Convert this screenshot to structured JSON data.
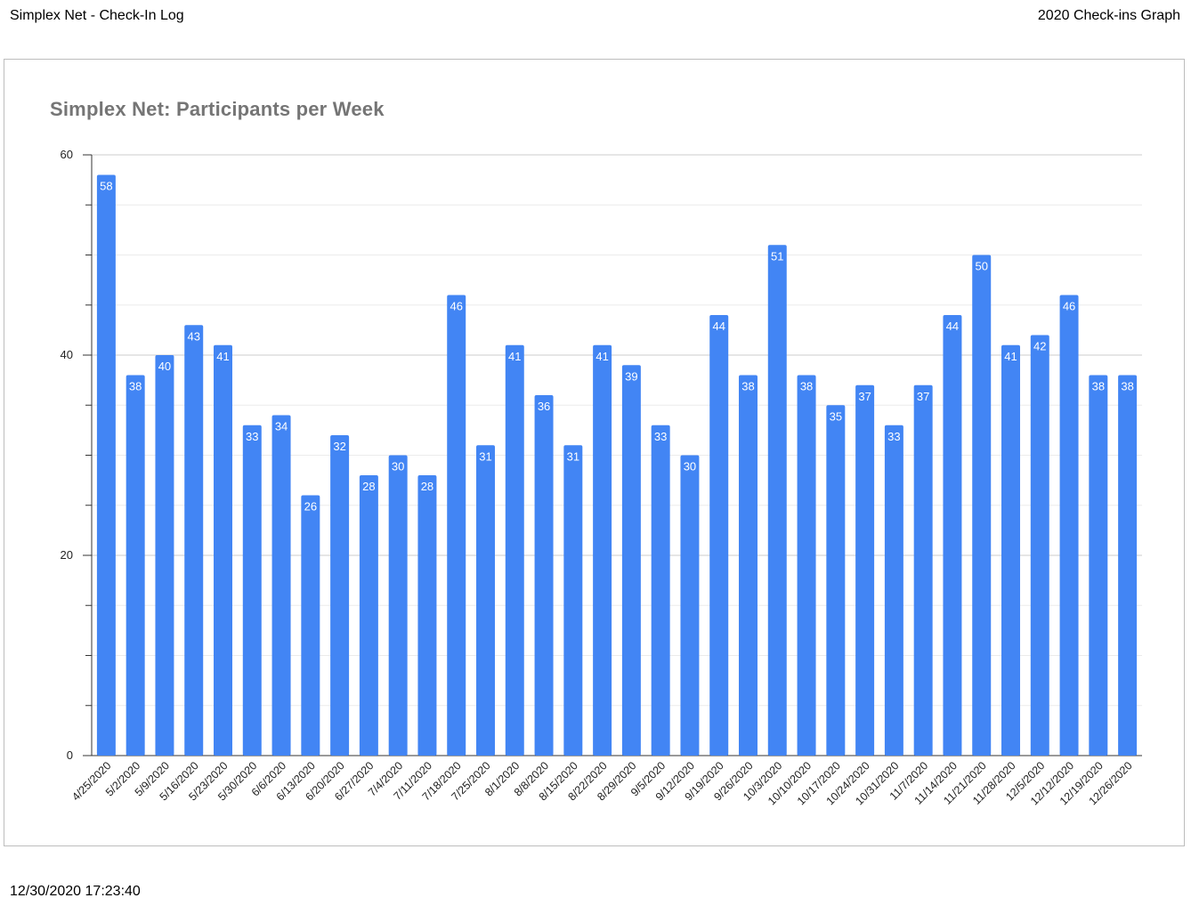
{
  "header": {
    "left": "Simplex Net - Check-In Log",
    "right": "2020 Check-ins Graph"
  },
  "footer": {
    "timestamp": "12/30/2020 17:23:40"
  },
  "colors": {
    "bar": "#4285f4",
    "title": "#757575",
    "grid": "#e0e0e0",
    "axis": "#333333"
  },
  "chart_data": {
    "type": "bar",
    "title": "Simplex Net: Participants per Week",
    "xlabel": "",
    "ylabel": "",
    "ylim": [
      0,
      60
    ],
    "yticks": [
      0,
      20,
      40,
      60
    ],
    "grid": true,
    "legend": "none",
    "data_labels": true,
    "categories": [
      "4/25/2020",
      "5/2/2020",
      "5/9/2020",
      "5/16/2020",
      "5/23/2020",
      "5/30/2020",
      "6/6/2020",
      "6/13/2020",
      "6/20/2020",
      "6/27/2020",
      "7/4/2020",
      "7/11/2020",
      "7/18/2020",
      "7/25/2020",
      "8/1/2020",
      "8/8/2020",
      "8/15/2020",
      "8/22/2020",
      "8/29/2020",
      "9/5/2020",
      "9/12/2020",
      "9/19/2020",
      "9/26/2020",
      "10/3/2020",
      "10/10/2020",
      "10/17/2020",
      "10/24/2020",
      "10/31/2020",
      "11/7/2020",
      "11/14/2020",
      "11/21/2020",
      "11/28/2020",
      "12/5/2020",
      "12/12/2020",
      "12/19/2020",
      "12/26/2020"
    ],
    "values": [
      58,
      38,
      40,
      43,
      41,
      33,
      34,
      26,
      32,
      28,
      30,
      28,
      46,
      31,
      41,
      36,
      31,
      41,
      39,
      33,
      30,
      44,
      38,
      51,
      38,
      35,
      37,
      33,
      37,
      44,
      50,
      41,
      42,
      46,
      38,
      38
    ]
  }
}
